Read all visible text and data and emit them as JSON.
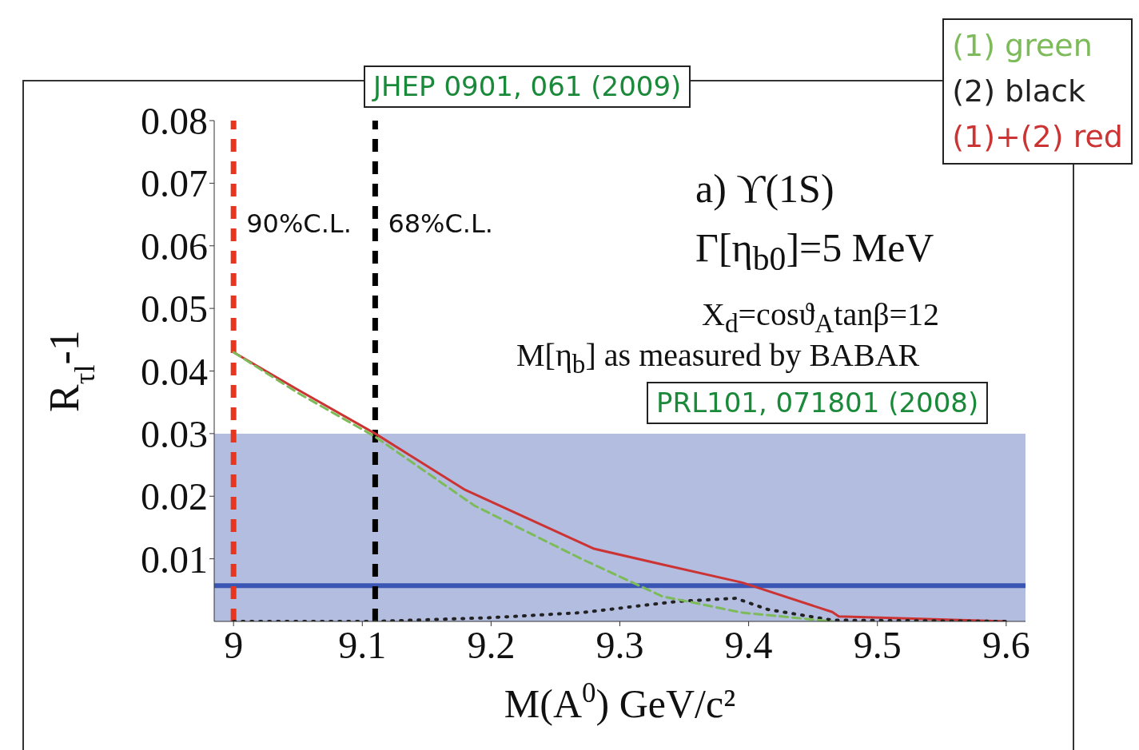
{
  "chart_data": {
    "type": "line",
    "xlabel": "M(A$^{0}$) GeV/c²",
    "ylabel": "R$_{τl}$-1",
    "xlim": [
      8.985,
      9.615
    ],
    "xticks": [
      9,
      9.1,
      9.2,
      9.3,
      9.4,
      9.5,
      9.6
    ],
    "ylim": [
      0,
      0.08
    ],
    "yticks": [
      0.01,
      0.02,
      0.03,
      0.04,
      0.05,
      0.06,
      0.07,
      0.08
    ],
    "grid": false,
    "marker": "none",
    "legend": "top right",
    "series": [
      {
        "name": "(1) green",
        "color": "#7dbb5a",
        "line_style": "dashed",
        "x": [
          9.0,
          9.05,
          9.11,
          9.187,
          9.27,
          9.333,
          9.395,
          9.465
        ],
        "values": [
          0.043,
          0.0365,
          0.0295,
          0.0185,
          0.01,
          0.004,
          0.0014,
          0.0
        ]
      },
      {
        "name": "(2) black",
        "color": "#222222",
        "line_style": "dotted",
        "x": [
          9.0,
          9.11,
          9.2,
          9.27,
          9.345,
          9.39,
          9.415,
          9.465,
          9.6
        ],
        "values": [
          0.0,
          0.0,
          0.0006,
          0.0014,
          0.0032,
          0.0037,
          0.0019,
          0.0002,
          0.0
        ]
      },
      {
        "name": "(1)+(2) red",
        "color": "#cc3333",
        "line_style": "solid",
        "x": [
          9.0,
          9.05,
          9.11,
          9.18,
          9.28,
          9.333,
          9.395,
          9.465,
          9.47,
          9.6
        ],
        "values": [
          0.043,
          0.037,
          0.03,
          0.021,
          0.0116,
          0.0091,
          0.0062,
          0.0015,
          0.0008,
          0.0
        ]
      }
    ],
    "bands": [
      {
        "axis": "y",
        "from": 0,
        "to": 0.03,
        "color": "#b3bde0"
      }
    ],
    "ref_lines": [
      {
        "axis": "y",
        "value": 0.0057,
        "color": "#3b55b5",
        "line_style": "solid"
      },
      {
        "axis": "x",
        "value": 9.0,
        "label": "90%C.L.",
        "color": "#e8361e",
        "line_style": "dashed"
      },
      {
        "axis": "x",
        "value": 9.11,
        "label": "68%C.L.",
        "color": "#000000",
        "line_style": "dashed"
      }
    ],
    "annotations": [
      "JHEP 0901, 061 (2009)",
      "a) ϒ(1S)",
      "Γ[η$_{b0}$]=5 MeV",
      "X$_{d}$=cosϑ$_{A}$tanβ=12",
      "M[η$_{b}$] as measured by BABAR",
      "PRL101, 071801 (2008)"
    ]
  }
}
